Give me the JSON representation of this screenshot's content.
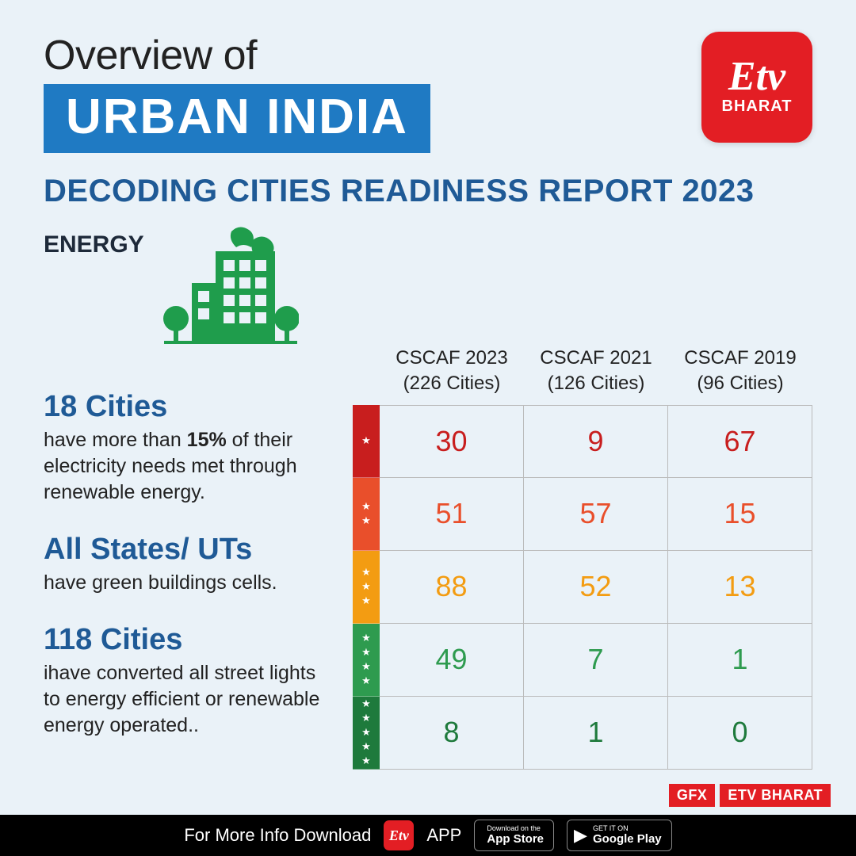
{
  "header": {
    "overview": "Overview of",
    "main": "URBAN INDIA",
    "logo_script": "Etv",
    "logo_sub": "BHARAT",
    "main_bg": "#1f7ac3",
    "logo_bg": "#e31e24"
  },
  "report_title": "DECODING CITIES READINESS REPORT 2023",
  "section_label": "ENERGY",
  "facts": [
    {
      "head": "18 Cities",
      "body_pre": "have more than ",
      "body_bold": "15%",
      "body_post": " of their electricity needs met through renewable energy."
    },
    {
      "head": "All States/ UTs",
      "body_pre": "have green buildings cells.",
      "body_bold": "",
      "body_post": ""
    },
    {
      "head": "118 Cities",
      "body_pre": "ihave converted all street lights to energy efficient or renewable energy operated..",
      "body_bold": "",
      "body_post": ""
    }
  ],
  "table": {
    "columns": [
      {
        "line1": "CSCAF 2023",
        "line2": "(226 Cities)"
      },
      {
        "line1": "CSCAF 2021",
        "line2": "(126 Cities)"
      },
      {
        "line1": "CSCAF 2019",
        "line2": "(96 Cities)"
      }
    ],
    "rows": [
      {
        "stars": 1,
        "star_bg": "#c81e1e",
        "text_color": "#c81e1e",
        "values": [
          "30",
          "9",
          "67"
        ]
      },
      {
        "stars": 2,
        "star_bg": "#e94f2b",
        "text_color": "#e94f2b",
        "values": [
          "51",
          "57",
          "15"
        ]
      },
      {
        "stars": 3,
        "star_bg": "#f39c12",
        "text_color": "#f39c12",
        "values": [
          "88",
          "52",
          "13"
        ]
      },
      {
        "stars": 4,
        "star_bg": "#2e9b4f",
        "text_color": "#2e9b4f",
        "values": [
          "49",
          "7",
          "1"
        ]
      },
      {
        "stars": 5,
        "star_bg": "#1e7a3c",
        "text_color": "#1e7a3c",
        "values": [
          "8",
          "1",
          "0"
        ]
      }
    ]
  },
  "gfx": {
    "label1": "GFX",
    "label2": "ETV BHARAT"
  },
  "footer": {
    "text_pre": "For More Info Download",
    "text_app": "APP",
    "appstore_small": "Download on the",
    "appstore_big": "App Store",
    "play_small": "GET IT ON",
    "play_big": "Google Play"
  },
  "colors": {
    "page_bg": "#eaf2f8",
    "report_title": "#1f5a96",
    "fact_head": "#1f5a96",
    "cell_border": "#bbbbbb",
    "green_building": "#1f9d4c"
  }
}
